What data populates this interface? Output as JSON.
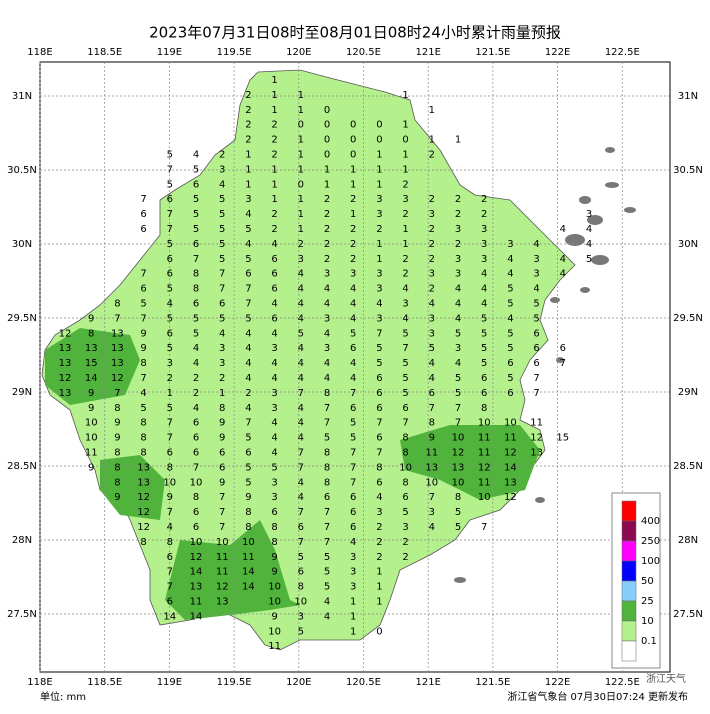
{
  "header": {
    "title": "2023年07月31日08时至08月01日08时24小时累计雨量预报"
  },
  "map": {
    "lon_labels": [
      "118E",
      "118.5E",
      "119E",
      "119.5E",
      "120E",
      "120.5E",
      "121E",
      "121.5E",
      "122E",
      "122.5E"
    ],
    "lat_labels": [
      "31N",
      "30.5N",
      "30N",
      "29.5N",
      "29N",
      "28.5N",
      "28N",
      "27.5N"
    ],
    "grid_values": [
      [
        null,
        null,
        null,
        null,
        null,
        null,
        null,
        null,
        1,
        null,
        null,
        null,
        null,
        null,
        null,
        null,
        null,
        null,
        null,
        null,
        null
      ],
      [
        null,
        null,
        null,
        null,
        null,
        null,
        null,
        2,
        1,
        1,
        null,
        null,
        null,
        1,
        null,
        null,
        null,
        null,
        null,
        null,
        null
      ],
      [
        null,
        null,
        null,
        null,
        null,
        null,
        null,
        2,
        1,
        1,
        0,
        null,
        null,
        null,
        1,
        null,
        null,
        null,
        null,
        null,
        null
      ],
      [
        null,
        null,
        null,
        null,
        null,
        null,
        null,
        2,
        2,
        0,
        0,
        0,
        0,
        1,
        null,
        null,
        null,
        null,
        null,
        null,
        null
      ],
      [
        null,
        null,
        null,
        null,
        null,
        null,
        null,
        2,
        2,
        1,
        0,
        0,
        0,
        0,
        1,
        1,
        null,
        null,
        null,
        null,
        null
      ],
      [
        null,
        null,
        null,
        null,
        5,
        4,
        2,
        1,
        2,
        1,
        0,
        0,
        1,
        1,
        2,
        null,
        null,
        null,
        null,
        null,
        null
      ],
      [
        null,
        null,
        null,
        null,
        7,
        5,
        3,
        1,
        1,
        1,
        1,
        1,
        1,
        1,
        null,
        null,
        null,
        null,
        null,
        null,
        null
      ],
      [
        null,
        null,
        null,
        null,
        5,
        6,
        4,
        1,
        1,
        0,
        1,
        1,
        1,
        2,
        null,
        null,
        null,
        null,
        null,
        null,
        null
      ],
      [
        null,
        null,
        null,
        7,
        6,
        5,
        5,
        3,
        1,
        1,
        2,
        2,
        3,
        3,
        2,
        2,
        2,
        null,
        null,
        null,
        null
      ],
      [
        null,
        null,
        null,
        6,
        7,
        5,
        5,
        4,
        2,
        1,
        2,
        1,
        3,
        2,
        3,
        2,
        2,
        null,
        null,
        null,
        3
      ],
      [
        null,
        null,
        null,
        6,
        7,
        5,
        5,
        5,
        2,
        1,
        2,
        2,
        2,
        1,
        2,
        3,
        3,
        null,
        null,
        4,
        4
      ],
      [
        null,
        null,
        null,
        null,
        5,
        6,
        5,
        4,
        4,
        2,
        2,
        2,
        1,
        1,
        2,
        2,
        3,
        3,
        4,
        null,
        4
      ],
      [
        null,
        null,
        null,
        null,
        6,
        7,
        5,
        5,
        6,
        3,
        2,
        2,
        1,
        2,
        2,
        3,
        3,
        4,
        3,
        4,
        5
      ],
      [
        null,
        null,
        null,
        7,
        6,
        8,
        7,
        6,
        6,
        4,
        3,
        3,
        3,
        2,
        3,
        3,
        4,
        4,
        3,
        4,
        null
      ],
      [
        null,
        null,
        null,
        6,
        5,
        8,
        7,
        7,
        6,
        4,
        4,
        4,
        3,
        4,
        2,
        4,
        4,
        5,
        4,
        null,
        null
      ],
      [
        null,
        null,
        8,
        5,
        4,
        6,
        6,
        7,
        4,
        4,
        4,
        4,
        4,
        3,
        4,
        4,
        4,
        5,
        5,
        null,
        null
      ],
      [
        null,
        9,
        7,
        7,
        5,
        5,
        5,
        5,
        6,
        4,
        3,
        4,
        3,
        4,
        3,
        4,
        5,
        4,
        5,
        null,
        null
      ],
      [
        12,
        8,
        13,
        9,
        6,
        5,
        4,
        4,
        4,
        5,
        4,
        5,
        7,
        5,
        3,
        5,
        5,
        5,
        6,
        null,
        null
      ],
      [
        13,
        13,
        13,
        9,
        5,
        4,
        3,
        4,
        3,
        4,
        3,
        6,
        5,
        7,
        5,
        3,
        5,
        5,
        6,
        6,
        null
      ],
      [
        13,
        15,
        13,
        8,
        3,
        4,
        3,
        4,
        4,
        4,
        4,
        4,
        5,
        5,
        4,
        4,
        5,
        6,
        6,
        7,
        null
      ],
      [
        12,
        14,
        12,
        7,
        2,
        2,
        2,
        4,
        4,
        4,
        4,
        4,
        6,
        5,
        4,
        5,
        6,
        5,
        7,
        null,
        null
      ],
      [
        13,
        9,
        7,
        4,
        1,
        2,
        1,
        2,
        3,
        7,
        8,
        7,
        6,
        5,
        6,
        5,
        6,
        6,
        7,
        null,
        null
      ],
      [
        null,
        9,
        8,
        5,
        5,
        4,
        8,
        4,
        3,
        4,
        7,
        6,
        6,
        6,
        7,
        7,
        8,
        null,
        null,
        null,
        null
      ],
      [
        null,
        10,
        9,
        8,
        7,
        6,
        9,
        7,
        4,
        4,
        7,
        5,
        7,
        7,
        8,
        7,
        10,
        10,
        11,
        null,
        null
      ],
      [
        null,
        10,
        9,
        8,
        7,
        6,
        9,
        5,
        4,
        4,
        5,
        5,
        6,
        8,
        9,
        10,
        11,
        11,
        12,
        15,
        null
      ],
      [
        null,
        11,
        8,
        8,
        6,
        6,
        6,
        6,
        4,
        7,
        8,
        7,
        7,
        8,
        11,
        12,
        11,
        12,
        13,
        null,
        null
      ],
      [
        null,
        9,
        8,
        13,
        8,
        7,
        6,
        5,
        5,
        7,
        8,
        7,
        8,
        10,
        13,
        13,
        12,
        14,
        null,
        null,
        null
      ],
      [
        null,
        null,
        8,
        13,
        10,
        10,
        9,
        5,
        3,
        4,
        8,
        7,
        6,
        8,
        10,
        10,
        11,
        13,
        null,
        null,
        null
      ],
      [
        null,
        null,
        9,
        12,
        9,
        8,
        7,
        9,
        3,
        4,
        6,
        6,
        4,
        6,
        7,
        8,
        10,
        12,
        null,
        null,
        null
      ],
      [
        null,
        null,
        null,
        12,
        7,
        6,
        7,
        8,
        6,
        7,
        7,
        6,
        3,
        5,
        3,
        5,
        null,
        null,
        null,
        null,
        null
      ],
      [
        null,
        null,
        null,
        12,
        4,
        6,
        7,
        8,
        8,
        6,
        7,
        6,
        2,
        3,
        4,
        5,
        7,
        null,
        null,
        null,
        null
      ],
      [
        null,
        null,
        null,
        8,
        8,
        10,
        10,
        10,
        8,
        7,
        7,
        4,
        2,
        2,
        null,
        null,
        null,
        null,
        null,
        null,
        null
      ],
      [
        null,
        null,
        null,
        null,
        6,
        12,
        11,
        11,
        9,
        5,
        5,
        3,
        2,
        2,
        null,
        null,
        null,
        null,
        null,
        null,
        null
      ],
      [
        null,
        null,
        null,
        null,
        7,
        14,
        11,
        14,
        9,
        6,
        5,
        3,
        1,
        null,
        null,
        null,
        null,
        null,
        null,
        null,
        null
      ],
      [
        null,
        null,
        null,
        null,
        7,
        13,
        12,
        14,
        10,
        8,
        5,
        3,
        1,
        null,
        null,
        null,
        null,
        null,
        null,
        null,
        null
      ],
      [
        null,
        null,
        null,
        null,
        6,
        11,
        13,
        null,
        10,
        10,
        4,
        1,
        1,
        null,
        null,
        null,
        null,
        null,
        null,
        null,
        null
      ],
      [
        null,
        null,
        null,
        null,
        14,
        14,
        null,
        null,
        9,
        3,
        4,
        1,
        null,
        null,
        null,
        null,
        null,
        null,
        null,
        null,
        null
      ],
      [
        null,
        null,
        null,
        null,
        null,
        null,
        null,
        null,
        10,
        5,
        null,
        1,
        0,
        null,
        null,
        null,
        null,
        null,
        null,
        null,
        null
      ],
      [
        null,
        null,
        null,
        null,
        null,
        null,
        null,
        null,
        11,
        null,
        null,
        null,
        null,
        null,
        null,
        null,
        null,
        null,
        null,
        null,
        null
      ]
    ]
  },
  "legend": {
    "labels": [
      "400",
      "250",
      "100",
      "50",
      "25",
      "10",
      "0.1"
    ],
    "colors": [
      "#ff0000",
      "#8b0a50",
      "#ff00ff",
      "#0000ff",
      "#87cefa",
      "#50b43c",
      "#b4f08c",
      "#ffffff"
    ]
  },
  "footer": {
    "unit": "单位: mm",
    "issuer": "浙江省气象台 07月30日07:24 更新发布"
  },
  "watermark": "浙江天气"
}
